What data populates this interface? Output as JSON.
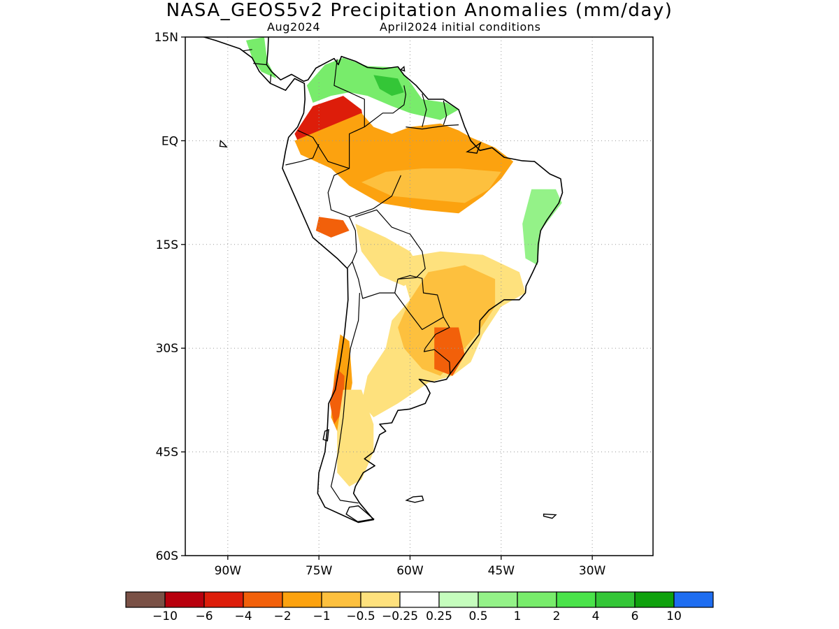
{
  "title": "NASA_GEOS5v2 Precipitation Anomalies (mm/day)",
  "subtitle_left": "Aug2024",
  "subtitle_right": "April2024 initial conditions",
  "map": {
    "lon_range": [
      -97,
      -20
    ],
    "lat_range": [
      -60,
      15
    ],
    "lat_ticks": [
      {
        "value": 15,
        "label": "15N"
      },
      {
        "value": 0,
        "label": "EQ"
      },
      {
        "value": -15,
        "label": "15S"
      },
      {
        "value": -30,
        "label": "30S"
      },
      {
        "value": -45,
        "label": "45S"
      },
      {
        "value": -60,
        "label": "60S"
      }
    ],
    "lon_ticks": [
      {
        "value": -90,
        "label": "90W"
      },
      {
        "value": -75,
        "label": "75W"
      },
      {
        "value": -60,
        "label": "60W"
      },
      {
        "value": -45,
        "label": "45W"
      },
      {
        "value": -30,
        "label": "30W"
      }
    ],
    "grid": true,
    "grid_style": "dotted"
  },
  "colorbar": {
    "colors": [
      "#7a5146",
      "#b8000d",
      "#dd1d0a",
      "#f2600a",
      "#fca20f",
      "#fdc03e",
      "#fee17d",
      "#ffffff",
      "#c5fdbd",
      "#94f288",
      "#78ec6b",
      "#4ae34a",
      "#34c637",
      "#0fa10d",
      "#1e6df0"
    ],
    "labels": [
      "-10",
      "-6",
      "-4",
      "-2",
      "-1",
      "-0.5",
      "-0.25",
      "0.25",
      "0.5",
      "1",
      "2",
      "4",
      "6",
      "10"
    ]
  },
  "anomaly_regions": [
    {
      "name": "central-america",
      "color": "#78ec6b",
      "points": [
        [
          -87,
          14.5
        ],
        [
          -84,
          15
        ],
        [
          -83.5,
          11.5
        ],
        [
          -82,
          9
        ],
        [
          -84.5,
          10
        ],
        [
          -86,
          12
        ]
      ]
    },
    {
      "name": "colombia-venezuela-north",
      "color": "#78ec6b",
      "points": [
        [
          -77,
          8
        ],
        [
          -74,
          11
        ],
        [
          -71,
          12
        ],
        [
          -67,
          10.8
        ],
        [
          -62,
          10.6
        ],
        [
          -60,
          8.5
        ],
        [
          -58,
          6
        ],
        [
          -54,
          5.5
        ],
        [
          -52,
          4.5
        ],
        [
          -55,
          3
        ],
        [
          -60,
          4
        ],
        [
          -63,
          5
        ],
        [
          -67,
          6.5
        ],
        [
          -70,
          7
        ],
        [
          -73,
          6.5
        ],
        [
          -76,
          5.5
        ]
      ]
    },
    {
      "name": "venezuela-guyana-green",
      "color": "#34c637",
      "points": [
        [
          -66,
          9.5
        ],
        [
          -62,
          9
        ],
        [
          -61,
          7
        ],
        [
          -63,
          6.5
        ],
        [
          -65,
          7.5
        ]
      ]
    },
    {
      "name": "amazon-west-red",
      "color": "#dd1d0a",
      "points": [
        [
          -76,
          5
        ],
        [
          -71,
          6.5
        ],
        [
          -68,
          4.5
        ],
        [
          -67,
          0
        ],
        [
          -69,
          -2
        ],
        [
          -74,
          -3
        ],
        [
          -78,
          -1
        ],
        [
          -79,
          1
        ]
      ]
    },
    {
      "name": "amazon-orange",
      "color": "#fca20f",
      "points": [
        [
          -79,
          0
        ],
        [
          -78,
          -2
        ],
        [
          -73,
          -4
        ],
        [
          -70,
          -6.5
        ],
        [
          -65,
          -9
        ],
        [
          -58,
          -10
        ],
        [
          -52,
          -10.5
        ],
        [
          -48,
          -8
        ],
        [
          -45,
          -5.5
        ],
        [
          -43,
          -3
        ],
        [
          -46,
          -1
        ],
        [
          -50,
          0.5
        ],
        [
          -52,
          1.5
        ],
        [
          -55,
          2.5
        ],
        [
          -60,
          2
        ],
        [
          -63,
          1
        ],
        [
          -66,
          2
        ],
        [
          -68,
          4
        ]
      ]
    },
    {
      "name": "amazon-light-orange",
      "color": "#fdc03e",
      "points": [
        [
          -68,
          -6
        ],
        [
          -63,
          -8
        ],
        [
          -57,
          -8.5
        ],
        [
          -51,
          -9
        ],
        [
          -47,
          -7
        ],
        [
          -45,
          -4.5
        ],
        [
          -52,
          -4
        ],
        [
          -58,
          -4
        ],
        [
          -64,
          -4.5
        ]
      ]
    },
    {
      "name": "peru-orange",
      "color": "#f2600a",
      "points": [
        [
          -75,
          -11
        ],
        [
          -71,
          -11.5
        ],
        [
          -70,
          -13
        ],
        [
          -73,
          -14
        ],
        [
          -75.5,
          -13
        ]
      ]
    },
    {
      "name": "bolivia-yellow",
      "color": "#fee17d",
      "points": [
        [
          -69,
          -12
        ],
        [
          -64,
          -14
        ],
        [
          -60,
          -16
        ],
        [
          -58,
          -19
        ],
        [
          -61,
          -21
        ],
        [
          -65,
          -19.5
        ],
        [
          -68,
          -16
        ]
      ]
    },
    {
      "name": "east-brazil-green",
      "color": "#94f288",
      "points": [
        [
          -40,
          -7
        ],
        [
          -36,
          -7
        ],
        [
          -35,
          -9
        ],
        [
          -38.5,
          -13
        ],
        [
          -39,
          -18
        ],
        [
          -41,
          -17
        ],
        [
          -41.5,
          -12
        ]
      ]
    },
    {
      "name": "south-brazil-yellow",
      "color": "#fee17d",
      "points": [
        [
          -62,
          -17
        ],
        [
          -55,
          -16
        ],
        [
          -48,
          -16.5
        ],
        [
          -42,
          -19
        ],
        [
          -41,
          -22
        ],
        [
          -45,
          -24
        ],
        [
          -48,
          -28
        ],
        [
          -50,
          -32
        ],
        [
          -53,
          -34
        ],
        [
          -57,
          -35
        ],
        [
          -62,
          -38
        ],
        [
          -66,
          -40
        ],
        [
          -68,
          -38
        ],
        [
          -67,
          -34
        ],
        [
          -64,
          -30
        ],
        [
          -63,
          -26
        ],
        [
          -60,
          -23
        ]
      ]
    },
    {
      "name": "south-brazil-orange",
      "color": "#fdc03e",
      "points": [
        [
          -57,
          -19
        ],
        [
          -51,
          -18
        ],
        [
          -46,
          -20
        ],
        [
          -46,
          -24
        ],
        [
          -49,
          -28
        ],
        [
          -52,
          -31
        ],
        [
          -55,
          -34
        ],
        [
          -58,
          -33
        ],
        [
          -61,
          -30
        ],
        [
          -62,
          -27
        ],
        [
          -60,
          -23
        ]
      ]
    },
    {
      "name": "uruguay-orange",
      "color": "#f2600a",
      "points": [
        [
          -56,
          -27
        ],
        [
          -52,
          -27
        ],
        [
          -51,
          -31
        ],
        [
          -53,
          -34
        ],
        [
          -56,
          -33
        ]
      ]
    },
    {
      "name": "chile-orange",
      "color": "#fca20f",
      "points": [
        [
          -71.5,
          -28
        ],
        [
          -70,
          -29
        ],
        [
          -69.5,
          -35
        ],
        [
          -70.5,
          -40
        ],
        [
          -72,
          -42
        ],
        [
          -73,
          -40
        ],
        [
          -72.5,
          -34
        ]
      ]
    },
    {
      "name": "chile-red",
      "color": "#f2600a",
      "points": [
        [
          -72,
          -33
        ],
        [
          -70.8,
          -34
        ],
        [
          -71,
          -39
        ],
        [
          -72.5,
          -41
        ],
        [
          -73.2,
          -38
        ]
      ]
    },
    {
      "name": "patagonia-yellow",
      "color": "#fee17d",
      "points": [
        [
          -71,
          -36
        ],
        [
          -68,
          -36
        ],
        [
          -66,
          -41
        ],
        [
          -66,
          -45
        ],
        [
          -68,
          -49
        ],
        [
          -70,
          -50
        ],
        [
          -72,
          -48
        ],
        [
          -72,
          -42
        ]
      ]
    }
  ]
}
